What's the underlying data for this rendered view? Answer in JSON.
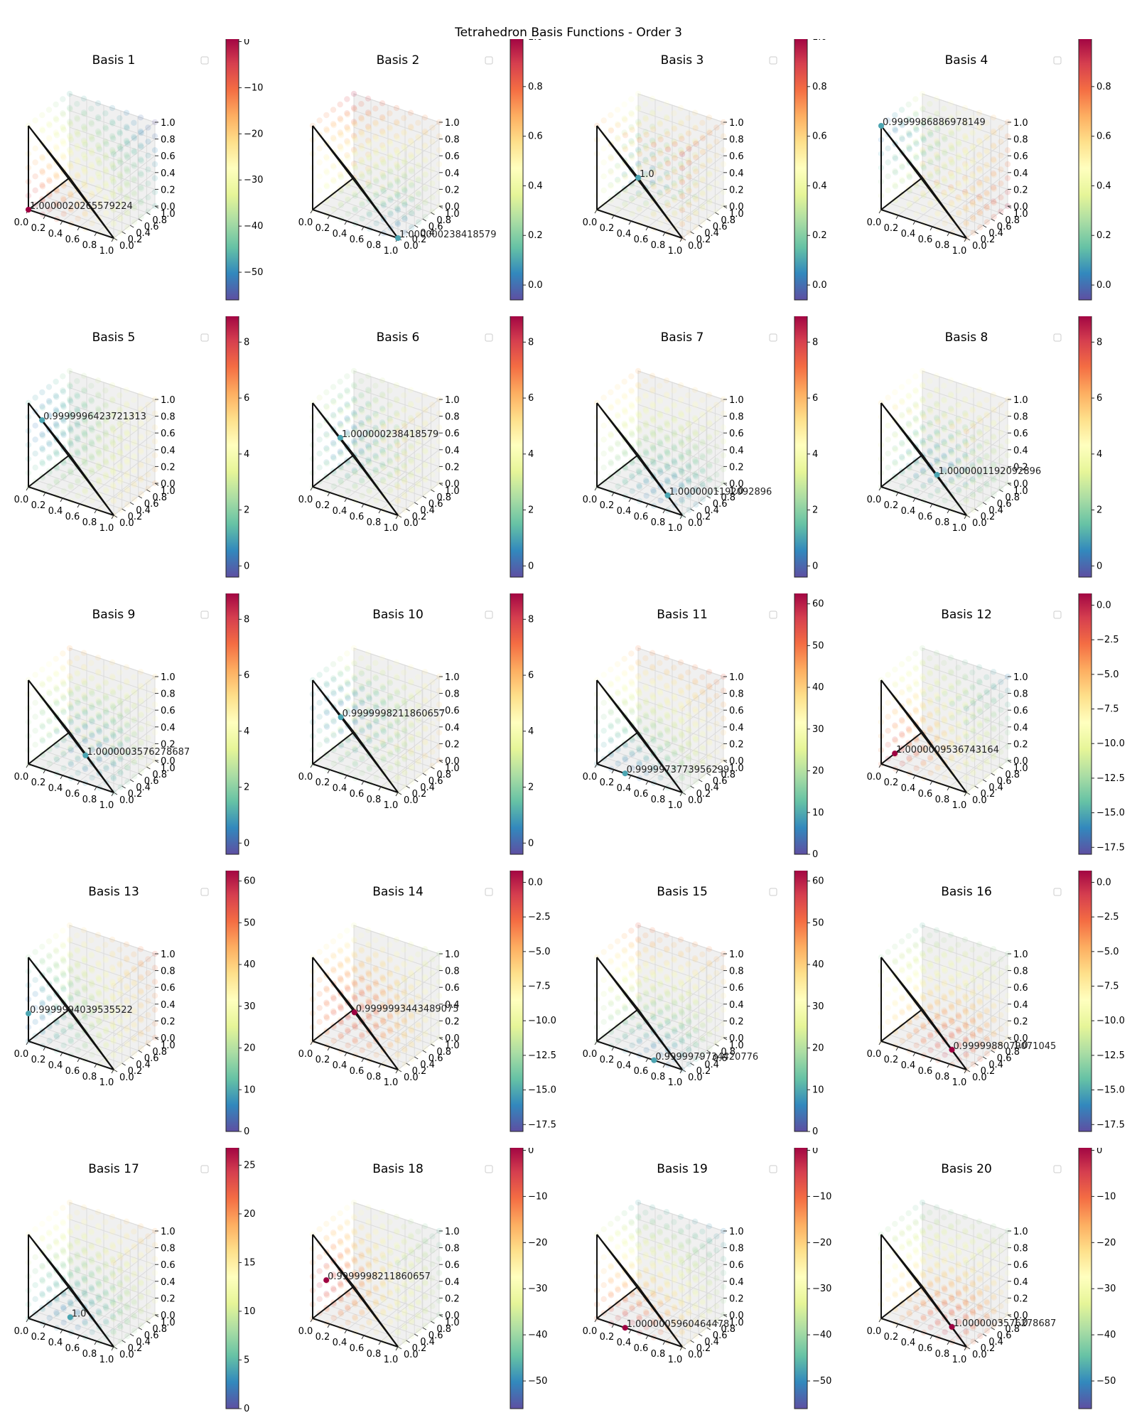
{
  "title": "Tetrahedron Basis Functions - Order 3",
  "colormap": [
    "#5e4fa2",
    "#3288bd",
    "#66c2a5",
    "#abdda4",
    "#e6f598",
    "#ffffbf",
    "#fee08b",
    "#fdae61",
    "#f46d43",
    "#d53e4f",
    "#9e0142"
  ],
  "axes": {
    "x_ticks": [
      "0.0",
      "0.2",
      "0.4",
      "0.6",
      "0.8",
      "1.0"
    ],
    "y_ticks": [
      "0.0",
      "0.2",
      "0.4",
      "0.6",
      "0.8",
      "1.0"
    ],
    "z_ticks": [
      "0.0",
      "0.2",
      "0.4",
      "0.6",
      "0.8",
      "1.0"
    ]
  },
  "chart_data": [
    {
      "type": "scatter",
      "title": "Basis 1",
      "annotation": "1.0000020265579224",
      "point": [
        0,
        0,
        0
      ],
      "colorbar_ticks": [
        "0",
        "−10",
        "−20",
        "−30",
        "−40",
        "−50"
      ],
      "colorbar_range": [
        -56,
        1
      ],
      "gradient_dir": 1
    },
    {
      "type": "scatter",
      "title": "Basis 2",
      "annotation": "1.000000238418579",
      "point": [
        1,
        0,
        0
      ],
      "colorbar_ticks": [
        "0.0",
        "0.2",
        "0.4",
        "0.6",
        "0.8",
        "1.0"
      ],
      "colorbar_range": [
        -0.06,
        1
      ],
      "gradient_dir": -1
    },
    {
      "type": "scatter",
      "title": "Basis 3",
      "annotation": "1.0",
      "point": [
        0,
        1,
        0
      ],
      "colorbar_ticks": [
        "0.0",
        "0.2",
        "0.4",
        "0.6",
        "0.8",
        "1.0"
      ],
      "colorbar_range": [
        -0.06,
        1
      ],
      "gradient_dir": -1
    },
    {
      "type": "scatter",
      "title": "Basis 4",
      "annotation": "0.9999986886978149",
      "point": [
        0,
        0,
        1
      ],
      "colorbar_ticks": [
        "0.0",
        "0.2",
        "0.4",
        "0.6",
        "0.8"
      ],
      "colorbar_range": [
        -0.06,
        1
      ],
      "gradient_dir": -1
    },
    {
      "type": "scatter",
      "title": "Basis 5",
      "annotation": "0.9999996423721313",
      "point": [
        0,
        0.33,
        0.67
      ],
      "colorbar_ticks": [
        "0",
        "2",
        "4",
        "6",
        "8"
      ],
      "colorbar_range": [
        -0.4,
        9
      ],
      "gradient_dir": -1
    },
    {
      "type": "scatter",
      "title": "Basis 6",
      "annotation": "1.000000238418579",
      "point": [
        0,
        0.67,
        0.33
      ],
      "colorbar_ticks": [
        "0",
        "2",
        "4",
        "6",
        "8"
      ],
      "colorbar_range": [
        -0.4,
        9
      ],
      "gradient_dir": -1
    },
    {
      "type": "scatter",
      "title": "Basis 7",
      "annotation": "1.0000001192092896",
      "point": [
        0.67,
        0.33,
        0
      ],
      "colorbar_ticks": [
        "0",
        "2",
        "4",
        "6",
        "8"
      ],
      "colorbar_range": [
        -0.4,
        9
      ],
      "gradient_dir": -1
    },
    {
      "type": "scatter",
      "title": "Basis 8",
      "annotation": "1.0000001192092896",
      "point": [
        0.33,
        0.67,
        0
      ],
      "colorbar_ticks": [
        "0",
        "2",
        "4",
        "6",
        "8"
      ],
      "colorbar_range": [
        -0.4,
        9
      ],
      "gradient_dir": -1
    },
    {
      "type": "scatter",
      "title": "Basis 9",
      "annotation": "1.0000003576278687",
      "point": [
        0.67,
        0,
        0.33
      ],
      "colorbar_ticks": [
        "0",
        "2",
        "4",
        "6",
        "8"
      ],
      "colorbar_range": [
        -0.4,
        9
      ],
      "gradient_dir": -1
    },
    {
      "type": "scatter",
      "title": "Basis 10",
      "annotation": "0.9999998211860657",
      "point": [
        0.33,
        0,
        0.67
      ],
      "colorbar_ticks": [
        "0",
        "2",
        "4",
        "6",
        "8"
      ],
      "colorbar_range": [
        -0.4,
        9
      ],
      "gradient_dir": -1
    },
    {
      "type": "scatter",
      "title": "Basis 11",
      "annotation": "0.9999973773956299",
      "point": [
        0.33,
        0,
        0
      ],
      "colorbar_ticks": [
        "0",
        "10",
        "20",
        "30",
        "40",
        "50",
        "60"
      ],
      "colorbar_range": [
        0,
        63
      ],
      "gradient_dir": -1
    },
    {
      "type": "scatter",
      "title": "Basis 12",
      "annotation": "1.0000009536743164",
      "point": [
        0,
        0.33,
        0
      ],
      "colorbar_ticks": [
        "0.0",
        "−2.5",
        "−5.0",
        "−7.5",
        "−10.0",
        "−12.5",
        "−15.0",
        "−17.5"
      ],
      "colorbar_range": [
        -18,
        1
      ],
      "gradient_dir": 1
    },
    {
      "type": "scatter",
      "title": "Basis 13",
      "annotation": "0.9999994039535522",
      "point": [
        0,
        0,
        0.33
      ],
      "colorbar_ticks": [
        "0",
        "10",
        "20",
        "30",
        "40",
        "50",
        "60"
      ],
      "colorbar_range": [
        0,
        63
      ],
      "gradient_dir": -1
    },
    {
      "type": "scatter",
      "title": "Basis 14",
      "annotation": "0.9999993443489075",
      "point": [
        0.33,
        0.33,
        0.33
      ],
      "colorbar_ticks": [
        "0.0",
        "−2.5",
        "−5.0",
        "−7.5",
        "−10.0",
        "−12.5",
        "−15.0",
        "−17.5"
      ],
      "colorbar_range": [
        -18,
        1
      ],
      "gradient_dir": 1
    },
    {
      "type": "scatter",
      "title": "Basis 15",
      "annotation": "0.9999979734420776",
      "point": [
        0.67,
        0,
        0
      ],
      "colorbar_ticks": [
        "0",
        "10",
        "20",
        "30",
        "40",
        "50",
        "60"
      ],
      "colorbar_range": [
        0,
        63
      ],
      "gradient_dir": -1
    },
    {
      "type": "scatter",
      "title": "Basis 16",
      "annotation": "0.9999988079071045",
      "point": [
        0.67,
        0.33,
        0
      ],
      "colorbar_ticks": [
        "0.0",
        "−2.5",
        "−5.0",
        "−7.5",
        "−10.0",
        "−12.5",
        "−15.0",
        "−17.5"
      ],
      "colorbar_range": [
        -18,
        1
      ],
      "gradient_dir": 1
    },
    {
      "type": "scatter",
      "title": "Basis 17",
      "annotation": "1.0",
      "point": [
        0.33,
        0.33,
        0
      ],
      "colorbar_ticks": [
        "0",
        "5",
        "10",
        "15",
        "20",
        "25"
      ],
      "colorbar_range": [
        0,
        27
      ],
      "gradient_dir": -1
    },
    {
      "type": "scatter",
      "title": "Basis 18",
      "annotation": "0.9999998211860657",
      "point": [
        0,
        0.33,
        0.33
      ],
      "colorbar_ticks": [
        "0",
        "−10",
        "−20",
        "−30",
        "−40",
        "−50"
      ],
      "colorbar_range": [
        -56,
        1
      ],
      "gradient_dir": 1
    },
    {
      "type": "scatter",
      "title": "Basis 19",
      "annotation": "1.0000005960464478",
      "point": [
        0.33,
        0,
        0
      ],
      "colorbar_ticks": [
        "0",
        "−10",
        "−20",
        "−30",
        "−40",
        "−50"
      ],
      "colorbar_range": [
        -56,
        1
      ],
      "gradient_dir": 1
    },
    {
      "type": "scatter",
      "title": "Basis 20",
      "annotation": "1.0000003576278687",
      "point": [
        0.67,
        0.33,
        0
      ],
      "colorbar_ticks": [
        "0",
        "−10",
        "−20",
        "−30",
        "−40",
        "−50"
      ],
      "colorbar_range": [
        -56,
        1
      ],
      "gradient_dir": 1
    }
  ]
}
